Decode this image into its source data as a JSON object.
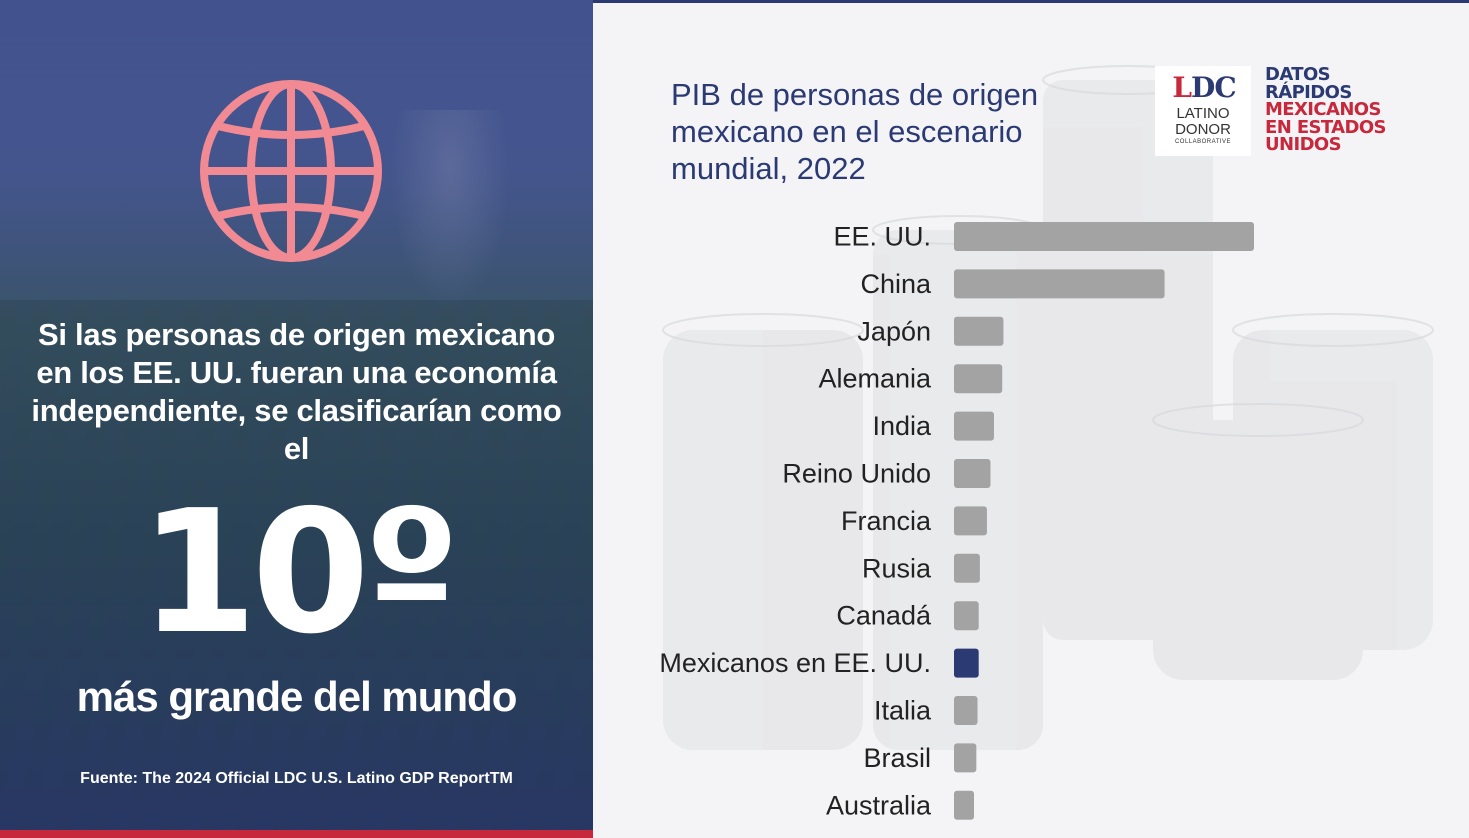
{
  "left_panel": {
    "lead_text": "Si las personas de origen mexicano en los EE. UU. fueran una economía independiente, se clasificarían como el",
    "rank": "10º",
    "rank_suffix": "más grande del mundo",
    "source": "Fuente: The 2024 Official LDC U.S. Latino GDP ReportTM",
    "icon": "globe-icon",
    "colors": {
      "globe": "#f28a93",
      "overlay": "#2f3e84",
      "accent_bar": "#c8283b"
    }
  },
  "logo": {
    "mark": "LDC",
    "line1": "LATINO",
    "line2": "DONOR",
    "line3": "COLLABORATIVE"
  },
  "brand": {
    "line1": "DATOS",
    "line2": "RÁPIDOS",
    "line3": "MEXICANOS",
    "line4": "EN ESTADOS",
    "line5": "UNIDOS"
  },
  "colors": {
    "title": "#2c3a74",
    "bar": "#a3a3a3",
    "highlight": "#2c3a74",
    "brand_red": "#c8283b"
  },
  "chart_data": {
    "type": "bar",
    "orientation": "horizontal",
    "title": "PIB de personas de origen mexicano en el escenario mundial, 2022",
    "categories": [
      "EE. UU.",
      "China",
      "Japón",
      "Alemania",
      "India",
      "Reino Unido",
      "Francia",
      "Rusia",
      "Canadá",
      "Mexicanos en EE. UU.",
      "Italia",
      "Brasil",
      "Australia"
    ],
    "values": [
      25.5,
      17.9,
      4.2,
      4.1,
      3.4,
      3.1,
      2.8,
      2.2,
      2.1,
      2.1,
      2.0,
      1.9,
      1.7
    ],
    "highlight": "Mexicanos en EE. UU.",
    "xlabel": "",
    "ylabel": "",
    "grid": false,
    "legend": "none"
  }
}
